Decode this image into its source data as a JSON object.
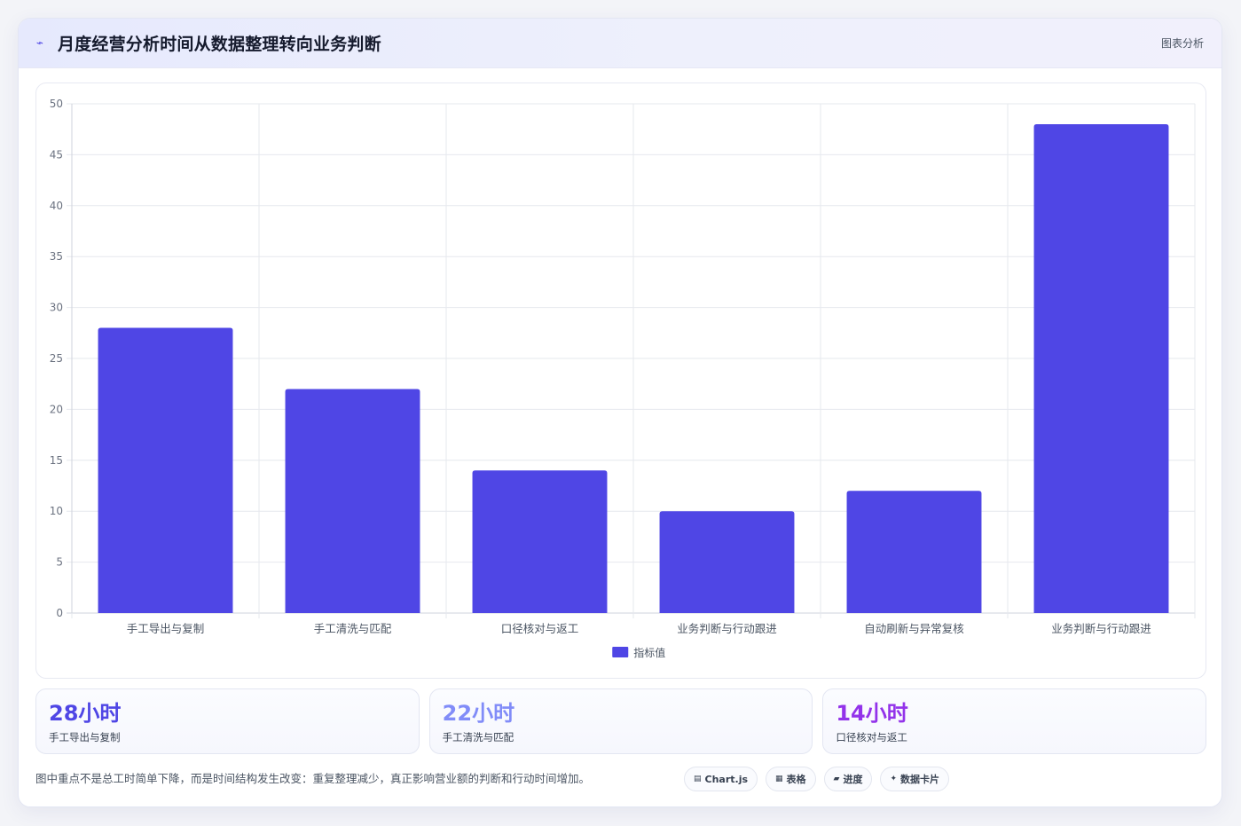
{
  "header": {
    "icon": "trend-icon",
    "title": "月度经营分析时间从数据整理转向业务判断",
    "tag": "图表分析"
  },
  "chart_data": {
    "type": "bar",
    "categories": [
      "手工导出与复制",
      "手工清洗与匹配",
      "口径核对与返工",
      "业务判断与行动跟进",
      "自动刷新与异常复核",
      "业务判断与行动跟进"
    ],
    "series": [
      {
        "name": "指标值",
        "values": [
          28,
          22,
          14,
          10,
          12,
          48
        ],
        "color": "#4f46e5"
      }
    ],
    "ylim": [
      0,
      50
    ],
    "yticks": [
      0,
      5,
      10,
      15,
      20,
      25,
      30,
      35,
      40,
      45,
      50
    ],
    "grid": true,
    "legend": "bottom"
  },
  "stats": [
    {
      "value": "28小时",
      "label": "手工导出与复制",
      "color": "#4f46e5"
    },
    {
      "value": "22小时",
      "label": "手工清洗与匹配",
      "color": "#818cf8"
    },
    {
      "value": "14小时",
      "label": "口径核对与返工",
      "color": "#9333ea"
    }
  ],
  "footer": {
    "note": "图中重点不是总工时简单下降，而是时间结构发生改变：重复整理减少，真正影响营业额的判断和行动时间增加。",
    "chips": [
      {
        "icon": "▤",
        "icon_name": "chart-icon",
        "label": "Chart.js"
      },
      {
        "icon": "▦",
        "icon_name": "table-icon",
        "label": "表格"
      },
      {
        "icon": "▰",
        "icon_name": "progress-icon",
        "label": "进度"
      },
      {
        "icon": "✦",
        "icon_name": "sparkle-icon",
        "label": "数据卡片"
      }
    ]
  }
}
